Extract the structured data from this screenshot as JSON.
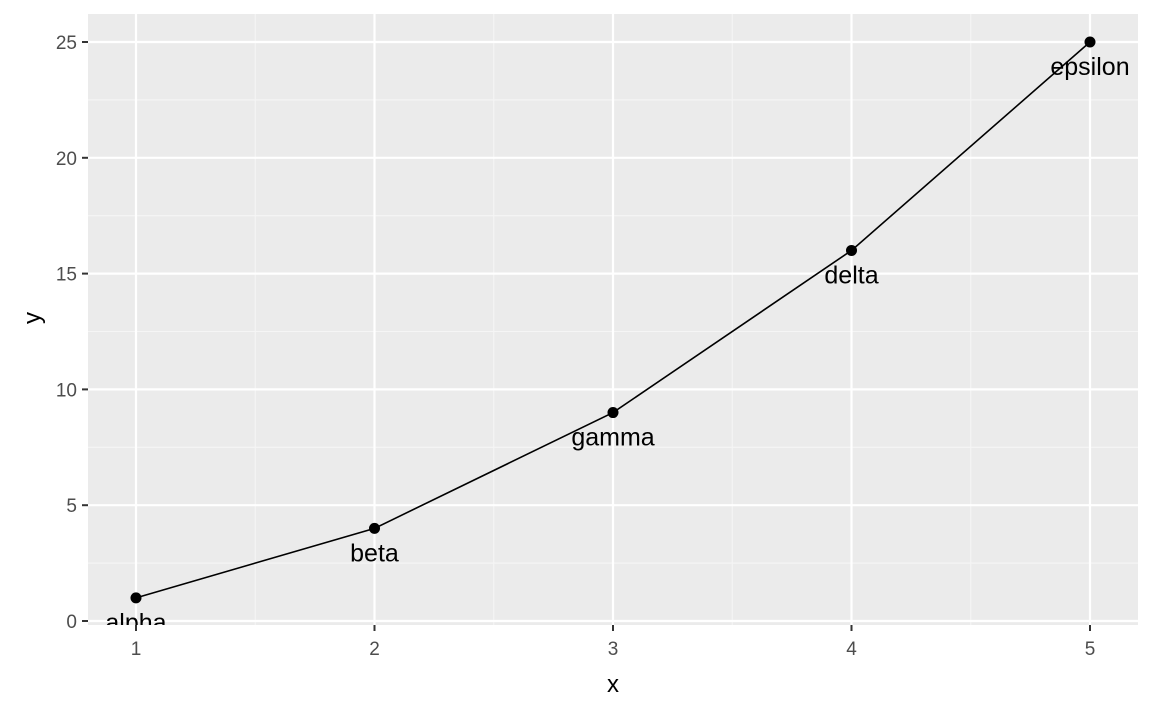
{
  "chart_data": {
    "type": "line",
    "xlabel": "x",
    "ylabel": "y",
    "xlim": [
      0.8,
      5.2
    ],
    "ylim": [
      0,
      25
    ],
    "x_ticks": [
      1,
      2,
      3,
      4,
      5
    ],
    "y_ticks": [
      0,
      5,
      10,
      15,
      20,
      25
    ],
    "grid": true,
    "markers": true,
    "series": [
      {
        "x": [
          1,
          2,
          3,
          4,
          5
        ],
        "y": [
          1,
          4,
          9,
          16,
          25
        ],
        "labels": [
          "alpha",
          "beta",
          "gamma",
          "delta",
          "epsilon"
        ]
      }
    ],
    "colors": {
      "panel_background": "#ebebeb",
      "grid_major": "#ffffff",
      "grid_minor": "#f5f5f5",
      "line": "#000000",
      "point": "#000000",
      "tick_text": "#4d4d4d"
    }
  }
}
